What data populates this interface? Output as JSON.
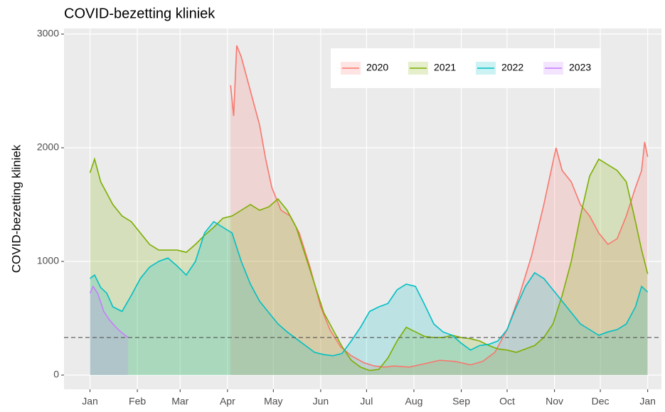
{
  "chart_data": {
    "type": "area-line",
    "title": "COVID-bezetting kliniek",
    "y_label": "COVID-bezetting kliniek",
    "xlim": [
      -16,
      375
    ],
    "xticks": [
      {
        "value": 1,
        "label": "Jan"
      },
      {
        "value": 32,
        "label": "Feb"
      },
      {
        "value": 60,
        "label": "Mar"
      },
      {
        "value": 91,
        "label": "Apr"
      },
      {
        "value": 121,
        "label": "May"
      },
      {
        "value": 152,
        "label": "Jun"
      },
      {
        "value": 182,
        "label": "Jul"
      },
      {
        "value": 213,
        "label": "Aug"
      },
      {
        "value": 244,
        "label": "Sep"
      },
      {
        "value": 274,
        "label": "Oct"
      },
      {
        "value": 305,
        "label": "Nov"
      },
      {
        "value": 335,
        "label": "Dec"
      },
      {
        "value": 366,
        "label": "Jan"
      }
    ],
    "ylim": [
      -125,
      3050
    ],
    "yticks": [
      0,
      1000,
      2000,
      3000
    ],
    "grid": true,
    "legend": "top-right",
    "reference_line": 330,
    "series": [
      {
        "name": "2020",
        "color": "#F8766D",
        "x": [
          93,
          95,
          97,
          100,
          104,
          108,
          112,
          116,
          120,
          126,
          132,
          138,
          145,
          152,
          158,
          165,
          172,
          180,
          187,
          194,
          200,
          210,
          220,
          230,
          240,
          250,
          258,
          266,
          274,
          282,
          290,
          298,
          306,
          310,
          316,
          322,
          328,
          334,
          340,
          346,
          352,
          358,
          362,
          364,
          366
        ],
        "values": [
          2550,
          2280,
          2900,
          2800,
          2600,
          2400,
          2200,
          1900,
          1650,
          1450,
          1400,
          1250,
          950,
          600,
          400,
          250,
          170,
          110,
          80,
          70,
          80,
          70,
          100,
          130,
          120,
          90,
          120,
          200,
          400,
          700,
          1050,
          1500,
          2000,
          1800,
          1700,
          1500,
          1400,
          1250,
          1150,
          1200,
          1400,
          1650,
          1800,
          2050,
          1920
        ]
      },
      {
        "name": "2021",
        "color": "#7CAE00",
        "x": [
          1,
          4,
          8,
          12,
          16,
          22,
          28,
          34,
          40,
          46,
          52,
          58,
          64,
          70,
          76,
          82,
          88,
          94,
          100,
          106,
          112,
          118,
          124,
          130,
          136,
          142,
          148,
          154,
          160,
          166,
          172,
          178,
          184,
          190,
          196,
          202,
          208,
          214,
          220,
          226,
          232,
          238,
          244,
          250,
          256,
          262,
          268,
          274,
          280,
          286,
          292,
          298,
          304,
          310,
          316,
          322,
          328,
          334,
          340,
          346,
          352,
          358,
          362,
          366
        ],
        "values": [
          1780,
          1900,
          1700,
          1600,
          1500,
          1400,
          1350,
          1250,
          1150,
          1100,
          1100,
          1100,
          1080,
          1150,
          1230,
          1300,
          1380,
          1400,
          1450,
          1500,
          1450,
          1480,
          1550,
          1450,
          1300,
          1050,
          800,
          550,
          400,
          250,
          130,
          70,
          40,
          50,
          150,
          300,
          420,
          380,
          340,
          330,
          330,
          350,
          330,
          320,
          300,
          260,
          230,
          220,
          200,
          230,
          260,
          330,
          450,
          700,
          1000,
          1400,
          1750,
          1900,
          1850,
          1800,
          1700,
          1350,
          1100,
          890
        ]
      },
      {
        "name": "2022",
        "color": "#00BFC4",
        "x": [
          1,
          4,
          8,
          12,
          16,
          22,
          28,
          34,
          40,
          46,
          52,
          58,
          64,
          70,
          76,
          82,
          88,
          94,
          100,
          106,
          112,
          118,
          124,
          130,
          136,
          142,
          148,
          154,
          160,
          166,
          172,
          178,
          184,
          190,
          196,
          202,
          208,
          214,
          220,
          226,
          232,
          238,
          244,
          250,
          256,
          262,
          268,
          274,
          280,
          286,
          292,
          298,
          304,
          310,
          316,
          322,
          328,
          334,
          340,
          346,
          352,
          358,
          362,
          366
        ],
        "values": [
          850,
          880,
          770,
          720,
          600,
          560,
          700,
          850,
          950,
          1000,
          1030,
          960,
          880,
          1000,
          1250,
          1350,
          1300,
          1250,
          1000,
          800,
          650,
          550,
          450,
          380,
          320,
          260,
          200,
          180,
          170,
          190,
          300,
          420,
          560,
          600,
          630,
          750,
          800,
          780,
          620,
          450,
          380,
          350,
          280,
          220,
          260,
          270,
          300,
          400,
          600,
          780,
          900,
          850,
          750,
          650,
          550,
          450,
          400,
          350,
          380,
          400,
          450,
          600,
          780,
          730
        ]
      },
      {
        "name": "2023",
        "color": "#C77CFF",
        "x": [
          1,
          3,
          6,
          10,
          14,
          18,
          22,
          26
        ],
        "values": [
          720,
          780,
          720,
          560,
          480,
          420,
          370,
          330
        ]
      }
    ]
  }
}
